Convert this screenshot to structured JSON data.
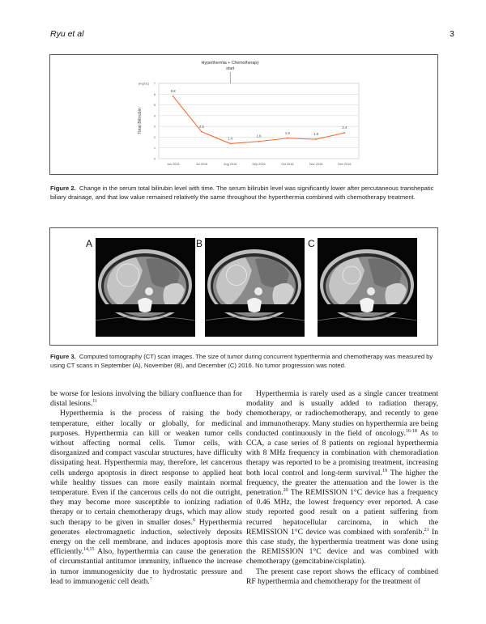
{
  "header": {
    "running_title": "Ryu et al",
    "page_number": "3"
  },
  "figure2": {
    "caption_label": "Figure 2.",
    "caption_text": "Change in the serum total bilirubin level with time. The serum bilirubin level was significantly lower after percutaneous transhepatic biliary drainage, and that low value remained relatively the same throughout the hyperthermia combined with chemotherapy treatment."
  },
  "chart_data": {
    "type": "line",
    "title": "",
    "annotation": {
      "line1": "Hyperthermia + Chemotherapy",
      "line2": "start",
      "at": "Aug 2016"
    },
    "ylabel": "Total Bilirubin",
    "yunit": "(mg/dL)",
    "xlabel": "",
    "categories": [
      "Jun 2016",
      "Jul 2016",
      "Aug 2016",
      "Sep 2016",
      "Oct 2016",
      "Nov 2016",
      "Dec 2016"
    ],
    "values": [
      5.8,
      2.5,
      1.4,
      1.6,
      1.9,
      1.8,
      2.4
    ],
    "data_labels": [
      "5.8",
      "2.5",
      "1.4",
      "1.6",
      "1.9",
      "1.8",
      "2.4"
    ],
    "ylim": [
      0,
      7
    ],
    "yticks": [
      "0",
      "1",
      "2",
      "3",
      "4",
      "5",
      "6",
      "7"
    ],
    "grid": true,
    "line_color": "#e8703a"
  },
  "figure3": {
    "panels": [
      "A",
      "B",
      "C"
    ],
    "caption_label": "Figure 3.",
    "caption_text": "Computed tomography (CT) scan images. The size of tumor during concurrent hyperthermia and chemotherapy was measured by using CT scans in September (A), November (B), and December (C) 2016. No tumor progression was noted."
  },
  "body": {
    "left": [
      {
        "indent": false,
        "segments": [
          {
            "t": "be worse for lesions involving the biliary confluence than for distal lesions."
          },
          {
            "sup": "11"
          }
        ]
      },
      {
        "indent": true,
        "segments": [
          {
            "t": "Hyperthermia is the process of raising the body temperature, either locally or globally, for medicinal purposes. Hyperthermia can kill or weaken tumor cells without affecting normal cells. Tumor cells, with disorganized and compact vascular structures, have difficulty dissipating heat. Hyperthermia may, therefore, let cancerous cells undergo apoptosis in direct response to applied heat while healthy tissues can more easily maintain normal temperature. Even if the cancerous cells do not die outright, they may become more susceptible to ionizing radiation therapy or to certain chemotherapy drugs, which may allow such therapy to be given in smaller doses."
          },
          {
            "sup": "6"
          },
          {
            "t": " Hyperthermia generates electromagnetic induction, selectively deposits energy on the cell membrane, and induces apoptosis more efficiently."
          },
          {
            "sup": "14,15"
          },
          {
            "t": " Also, hyperthermia can cause the generation of circumstantial antitumor immunity, influence the increase in tumor immunogenicity due to hydrostatic pressure and lead to immunogenic cell death."
          },
          {
            "sup": "7"
          }
        ]
      }
    ],
    "right": [
      {
        "indent": true,
        "segments": [
          {
            "t": "Hyperthermia is rarely used as a single cancer treatment modality and is usually added to radiation therapy, chemotherapy, or radiochemotherapy, and recently to gene and immunotherapy. Many studies on hyperthermia are being conducted continuously in the field of oncology."
          },
          {
            "sup": "16-18"
          },
          {
            "t": " As to CCA, a case series of 8 patients on regional hyperthermia with 8 MHz frequency in combination with chemoradiation therapy was reported to be a promising treatment, increasing both local control and long-term survival."
          },
          {
            "sup": "19"
          },
          {
            "t": " The higher the frequency, the greater the attenuation and the lower is the penetration."
          },
          {
            "sup": "20"
          },
          {
            "t": " The REMISSION 1°C device has a frequency of 0.46 MHz, the lowest frequency ever reported. A case study reported good result on a patient suffering from recurred hepatocellular carcinoma, in which the REMISSION 1°C device was combined with sorafenib."
          },
          {
            "sup": "21"
          },
          {
            "t": " In this case study, the hyperthermia treatment was done using the REMISSION 1°C device and was combined with chemotherapy (gemcitabine/cisplatin)."
          }
        ]
      },
      {
        "indent": true,
        "segments": [
          {
            "t": "The present case report shows the efficacy of combined RF hyperthermia and chemotherapy for the treatment of"
          }
        ]
      }
    ]
  }
}
